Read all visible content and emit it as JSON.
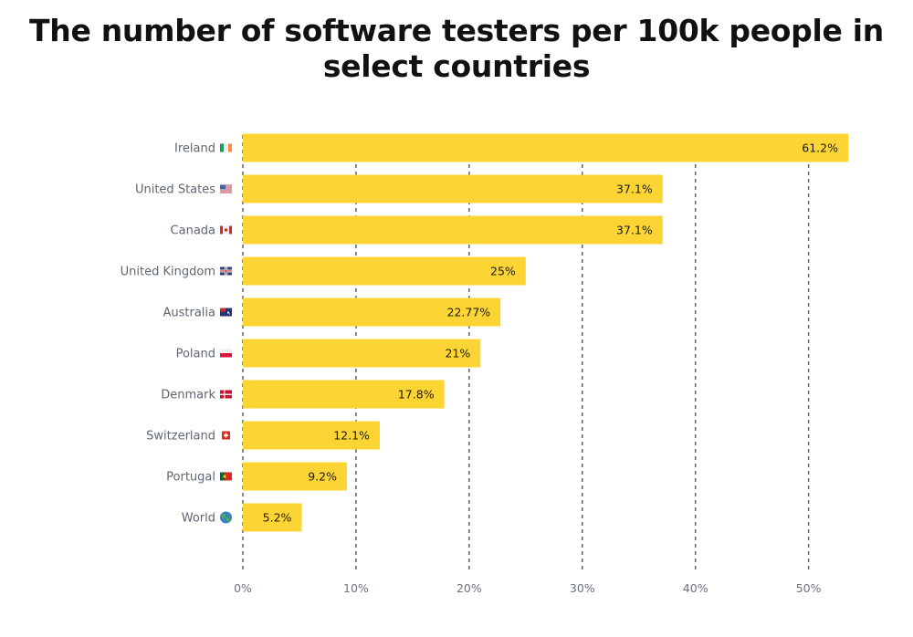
{
  "chart_data": {
    "type": "bar",
    "orientation": "horizontal",
    "title_lines": [
      "The number of software testers per 100k people in",
      "select countries"
    ],
    "categories": [
      "Ireland",
      "United States",
      "Canada",
      "United Kingdom",
      "Australia",
      "Poland",
      "Denmark",
      "Switzerland",
      "Portugal",
      "World"
    ],
    "flags": [
      "ireland-flag",
      "united-states-flag",
      "canada-flag",
      "united-kingdom-flag",
      "australia-flag",
      "poland-flag",
      "denmark-flag",
      "switzerland-flag",
      "portugal-flag",
      "globe"
    ],
    "values": [
      61.2,
      37.1,
      37.1,
      25,
      22.77,
      21,
      17.8,
      12.1,
      9.2,
      5.2
    ],
    "value_labels": [
      "61.2%",
      "37.1%",
      "37.1%",
      "25%",
      "22.77%",
      "21%",
      "17.8%",
      "12.1%",
      "9.2%",
      "5.2%"
    ],
    "xticks": [
      0,
      10,
      20,
      30,
      40,
      50
    ],
    "xtick_labels": [
      "0%",
      "10%",
      "20%",
      "30%",
      "40%",
      "50%"
    ],
    "xlim": [
      0,
      53.5
    ],
    "grid": "vertical dashed",
    "bar_color": "#fcd535"
  }
}
